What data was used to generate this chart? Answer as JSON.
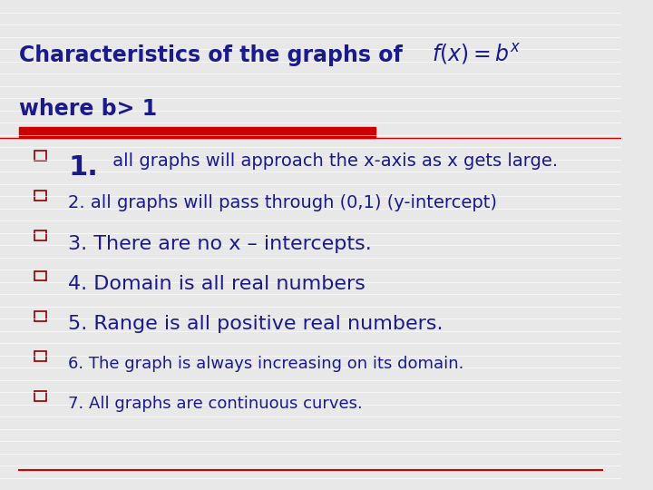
{
  "bg_color": "#e8e8e8",
  "title_line1": "Characteristics of the graphs of",
  "title_line2": "where b> 1",
  "title_color": "#1a1a8c",
  "formula": "$f(x) = b^x$",
  "formula_color": "#1a1a8c",
  "divider_color": "#cc0000",
  "bullet_color": "#8b0000",
  "text_color": "#1a1a8c",
  "items": [
    {
      "num": "1.",
      "text": " all graphs will approach the x-axis as x gets large.",
      "size_num": 22,
      "size_text": 14,
      "bold_num": true
    },
    {
      "num": "2.",
      "text": " all graphs will pass through (0,1) (y-intercept)",
      "size_num": 16,
      "size_text": 14,
      "bold_num": false
    },
    {
      "num": "3.",
      "text": " There are no x – intercepts.",
      "size_num": 16,
      "size_text": 16,
      "bold_num": false
    },
    {
      "num": "4.",
      "text": " Domain is all real numbers",
      "size_num": 16,
      "size_text": 16,
      "bold_num": false
    },
    {
      "num": "5.",
      "text": " Range is all positive real numbers.",
      "size_num": 16,
      "size_text": 16,
      "bold_num": false
    },
    {
      "num": "6.",
      "text": " The graph is always increasing on its domain.",
      "size_num": 16,
      "size_text": 13,
      "bold_num": false
    },
    {
      "num": "7.",
      "text": " All graphs are continuous curves.",
      "size_num": 16,
      "size_text": 13,
      "bold_num": false
    }
  ]
}
